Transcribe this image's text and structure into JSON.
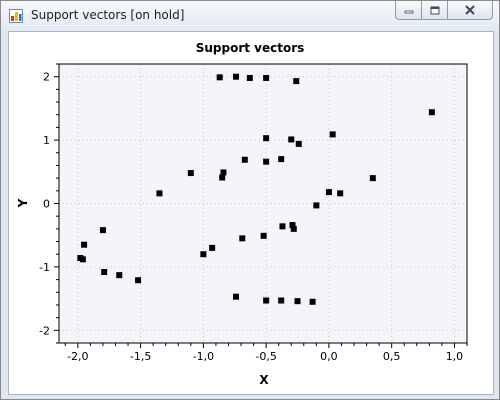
{
  "window": {
    "title": "Support vectors [on hold]",
    "icons": {
      "app": "chart-app-icon",
      "minimize": "minimize-icon",
      "maximize": "maximize-icon",
      "close": "close-icon"
    }
  },
  "colors": {
    "plot_background": "#f3f5fb",
    "marker": "#000000",
    "grid": "#c8c8c8"
  },
  "chart_data": {
    "type": "scatter",
    "title": "Support vectors",
    "xlabel": "X",
    "ylabel": "Y",
    "xlim": [
      -2.15,
      1.1
    ],
    "ylim": [
      -2.2,
      2.2
    ],
    "x_ticks": [
      -2.0,
      -1.5,
      -1.0,
      -0.5,
      0.0,
      0.5,
      1.0
    ],
    "x_tick_labels": [
      "-2,0",
      "-1,5",
      "-1,0",
      "-0,5",
      "0,0",
      "0,5",
      "1,0"
    ],
    "y_ticks": [
      -2,
      -1,
      0,
      1,
      2
    ],
    "y_tick_labels": [
      "-2",
      "-1",
      "0",
      "1",
      "2"
    ],
    "grid": true,
    "legend": false,
    "series": [
      {
        "name": "support vectors",
        "points": [
          {
            "x": -0.87,
            "y": 1.99
          },
          {
            "x": -0.74,
            "y": 2.0
          },
          {
            "x": -0.63,
            "y": 1.98
          },
          {
            "x": -0.5,
            "y": 1.98
          },
          {
            "x": -0.26,
            "y": 1.93
          },
          {
            "x": 0.82,
            "y": 1.44
          },
          {
            "x": -0.5,
            "y": 1.03
          },
          {
            "x": -0.3,
            "y": 1.01
          },
          {
            "x": -0.24,
            "y": 0.94
          },
          {
            "x": 0.03,
            "y": 1.09
          },
          {
            "x": -0.67,
            "y": 0.69
          },
          {
            "x": -0.5,
            "y": 0.66
          },
          {
            "x": -0.38,
            "y": 0.7
          },
          {
            "x": -1.1,
            "y": 0.48
          },
          {
            "x": -0.84,
            "y": 0.49
          },
          {
            "x": -0.85,
            "y": 0.41
          },
          {
            "x": 0.35,
            "y": 0.4
          },
          {
            "x": -1.35,
            "y": 0.16
          },
          {
            "x": 0.0,
            "y": 0.18
          },
          {
            "x": 0.09,
            "y": 0.16
          },
          {
            "x": -0.1,
            "y": -0.03
          },
          {
            "x": -0.37,
            "y": -0.36
          },
          {
            "x": -0.29,
            "y": -0.34
          },
          {
            "x": -0.28,
            "y": -0.4
          },
          {
            "x": -0.69,
            "y": -0.55
          },
          {
            "x": -0.52,
            "y": -0.51
          },
          {
            "x": -1.8,
            "y": -0.42
          },
          {
            "x": -1.95,
            "y": -0.65
          },
          {
            "x": -0.93,
            "y": -0.7
          },
          {
            "x": -1.0,
            "y": -0.8
          },
          {
            "x": -1.98,
            "y": -0.86
          },
          {
            "x": -1.96,
            "y": -0.88
          },
          {
            "x": -1.79,
            "y": -1.08
          },
          {
            "x": -1.67,
            "y": -1.13
          },
          {
            "x": -1.52,
            "y": -1.21
          },
          {
            "x": -0.74,
            "y": -1.47
          },
          {
            "x": -0.5,
            "y": -1.53
          },
          {
            "x": -0.38,
            "y": -1.53
          },
          {
            "x": -0.25,
            "y": -1.54
          },
          {
            "x": -0.13,
            "y": -1.55
          }
        ]
      }
    ]
  }
}
